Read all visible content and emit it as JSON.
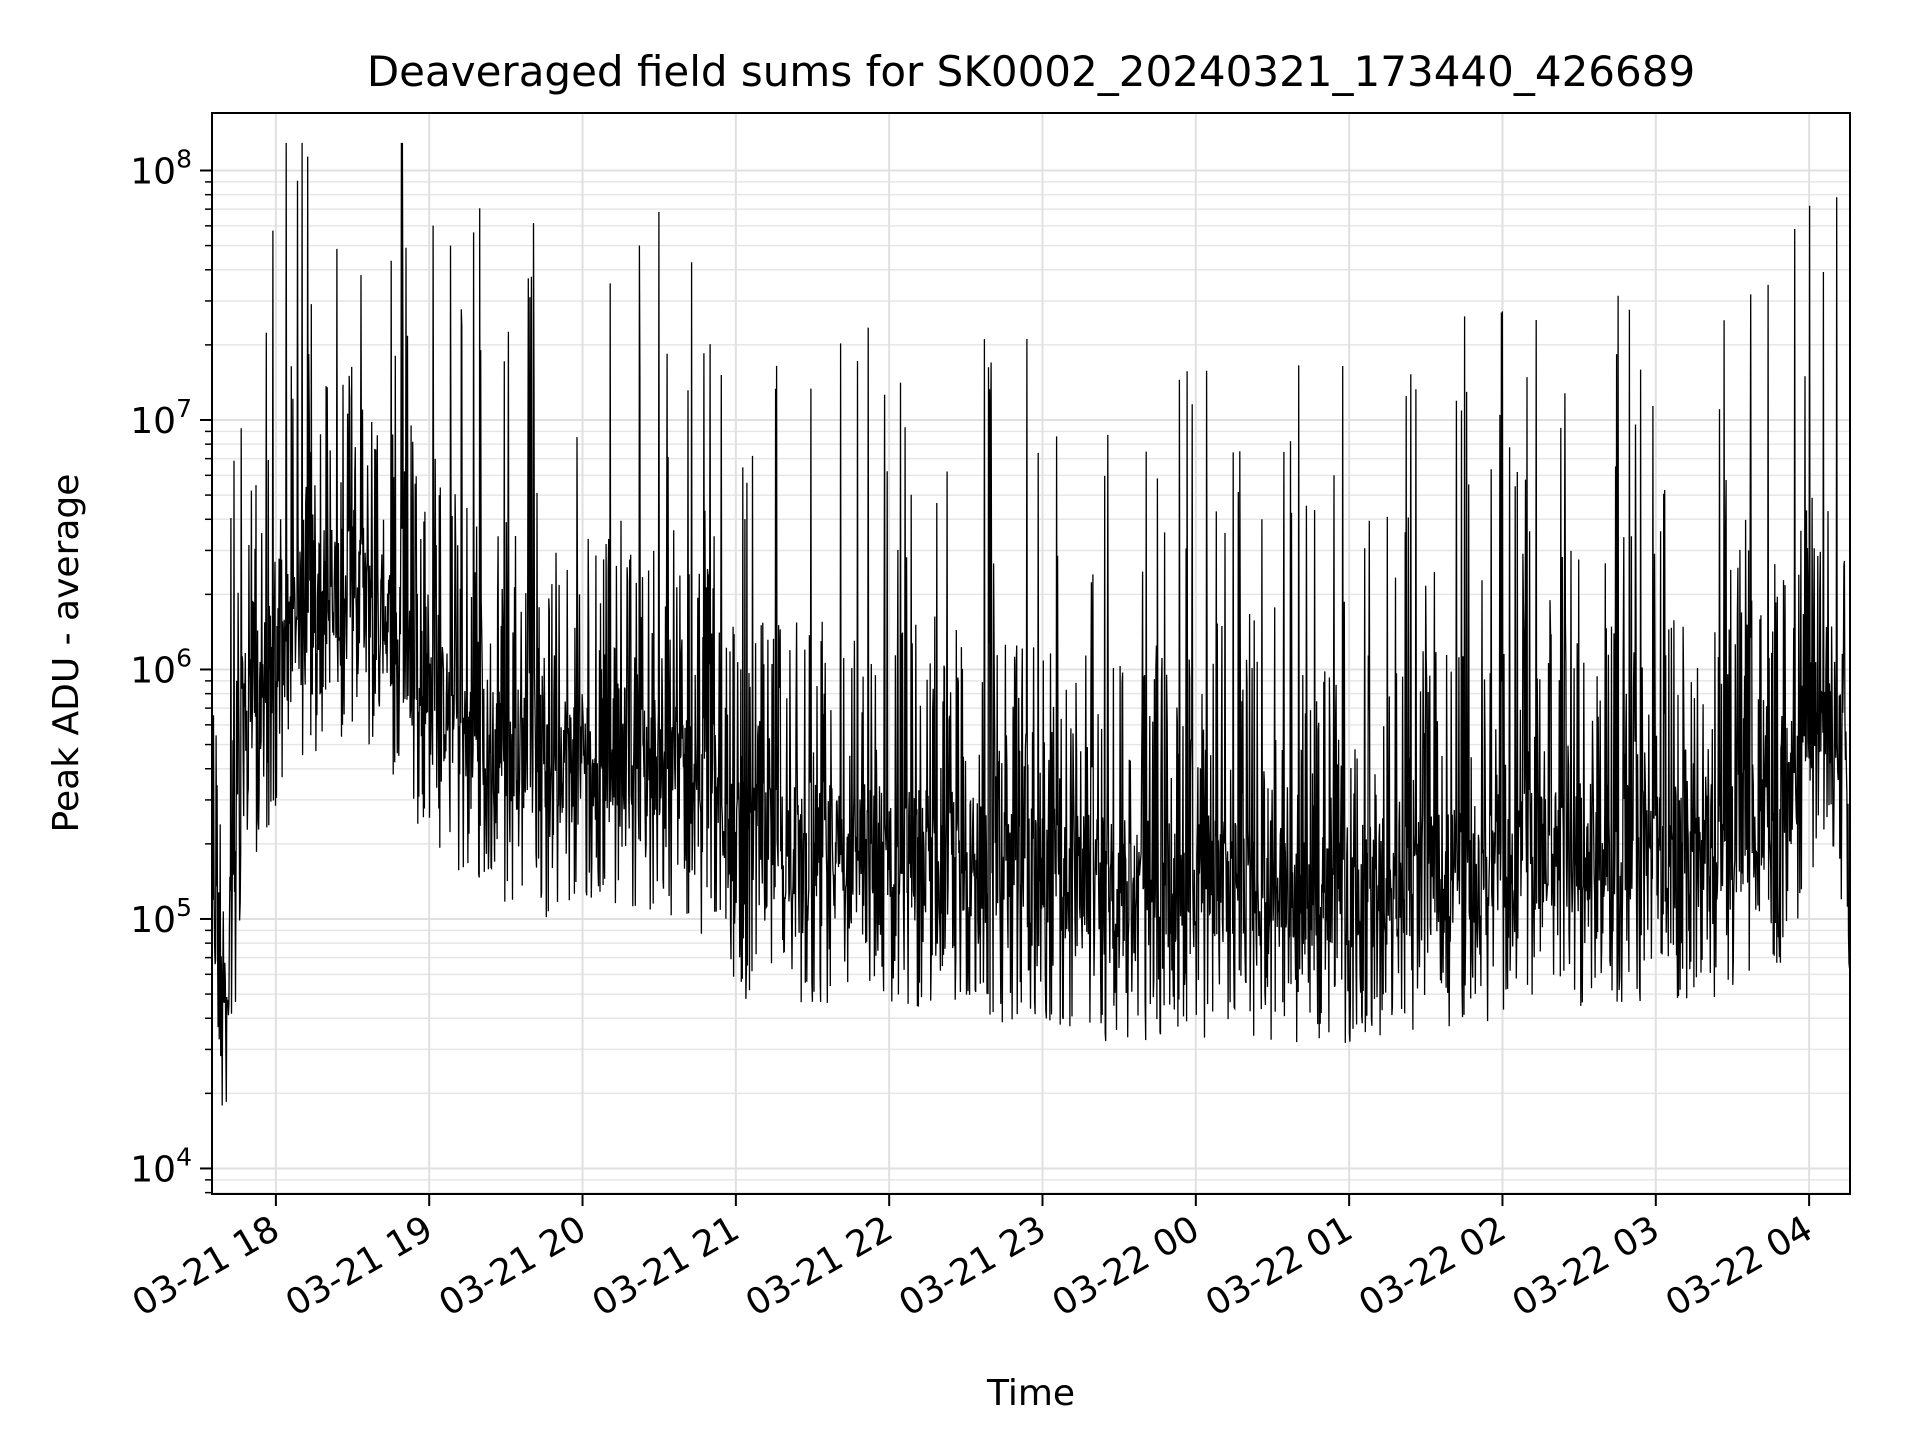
{
  "chart_data": {
    "type": "line",
    "title": "Deaveraged field sums for SK0002_20240321_173440_426689",
    "xlabel": "Time",
    "ylabel": "Peak ADU - average",
    "yscale": "log",
    "ylim": [
      7900,
      170000000
    ],
    "xlim": [
      "2024-03-21 17:35",
      "2024-03-22 04:16"
    ],
    "grid": true,
    "line_color": "#000000",
    "x_ticks": [
      {
        "time": "2024-03-21 18:00",
        "label": "03-21 18"
      },
      {
        "time": "2024-03-21 19:00",
        "label": "03-21 19"
      },
      {
        "time": "2024-03-21 20:00",
        "label": "03-21 20"
      },
      {
        "time": "2024-03-21 21:00",
        "label": "03-21 21"
      },
      {
        "time": "2024-03-21 22:00",
        "label": "03-21 22"
      },
      {
        "time": "2024-03-21 23:00",
        "label": "03-21 23"
      },
      {
        "time": "2024-03-22 00:00",
        "label": "03-22 00"
      },
      {
        "time": "2024-03-22 01:00",
        "label": "03-22 01"
      },
      {
        "time": "2024-03-22 02:00",
        "label": "03-22 02"
      },
      {
        "time": "2024-03-22 03:00",
        "label": "03-22 03"
      },
      {
        "time": "2024-03-22 04:00",
        "label": "03-22 04"
      }
    ],
    "y_ticks": [
      {
        "value": 10000,
        "base": "10",
        "exp": "4"
      },
      {
        "value": 100000,
        "base": "10",
        "exp": "5"
      },
      {
        "value": 1000000,
        "base": "10",
        "exp": "6"
      },
      {
        "value": 10000000,
        "base": "10",
        "exp": "7"
      },
      {
        "value": 100000000,
        "base": "10",
        "exp": "8"
      }
    ],
    "series": [
      {
        "x": [
          "2024-03-21 17:35",
          "2024-03-21 17:37",
          "2024-03-21 17:39",
          "2024-03-21 17:41",
          "2024-03-21 17:44",
          "2024-03-21 17:47",
          "2024-03-21 17:52",
          "2024-03-21 17:57",
          "2024-03-21 18:05",
          "2024-03-21 18:15",
          "2024-03-21 18:30",
          "2024-03-21 18:45",
          "2024-03-21 19:00",
          "2024-03-21 19:15",
          "2024-03-21 19:30",
          "2024-03-21 19:45",
          "2024-03-21 20:00",
          "2024-03-21 20:15",
          "2024-03-21 20:30",
          "2024-03-21 20:45",
          "2024-03-21 20:52",
          "2024-03-21 20:56",
          "2024-03-21 21:00",
          "2024-03-21 21:15",
          "2024-03-21 21:30",
          "2024-03-21 21:45",
          "2024-03-21 22:00",
          "2024-03-21 22:30",
          "2024-03-21 23:00",
          "2024-03-21 23:30",
          "2024-03-22 00:00",
          "2024-03-22 00:30",
          "2024-03-22 01:00",
          "2024-03-22 01:30",
          "2024-03-22 02:00",
          "2024-03-22 02:30",
          "2024-03-22 03:00",
          "2024-03-22 03:30",
          "2024-03-22 03:50",
          "2024-03-22 04:00",
          "2024-03-22 04:05",
          "2024-03-22 04:10",
          "2024-03-22 04:14",
          "2024-03-22 04:16"
        ],
        "y": [
          100000,
          90000,
          70000,
          80000,
          150000,
          700000,
          800000,
          1000000,
          1500000,
          2000000,
          2500000,
          1500000,
          800000,
          600000,
          500000,
          450000,
          500000,
          500000,
          450000,
          400000,
          350000,
          300000,
          200000,
          200000,
          200000,
          200000,
          200000,
          180000,
          160000,
          140000,
          150000,
          140000,
          140000,
          150000,
          180000,
          200000,
          200000,
          220000,
          300000,
          600000,
          1000000,
          800000,
          400000,
          150000
        ]
      }
    ]
  }
}
